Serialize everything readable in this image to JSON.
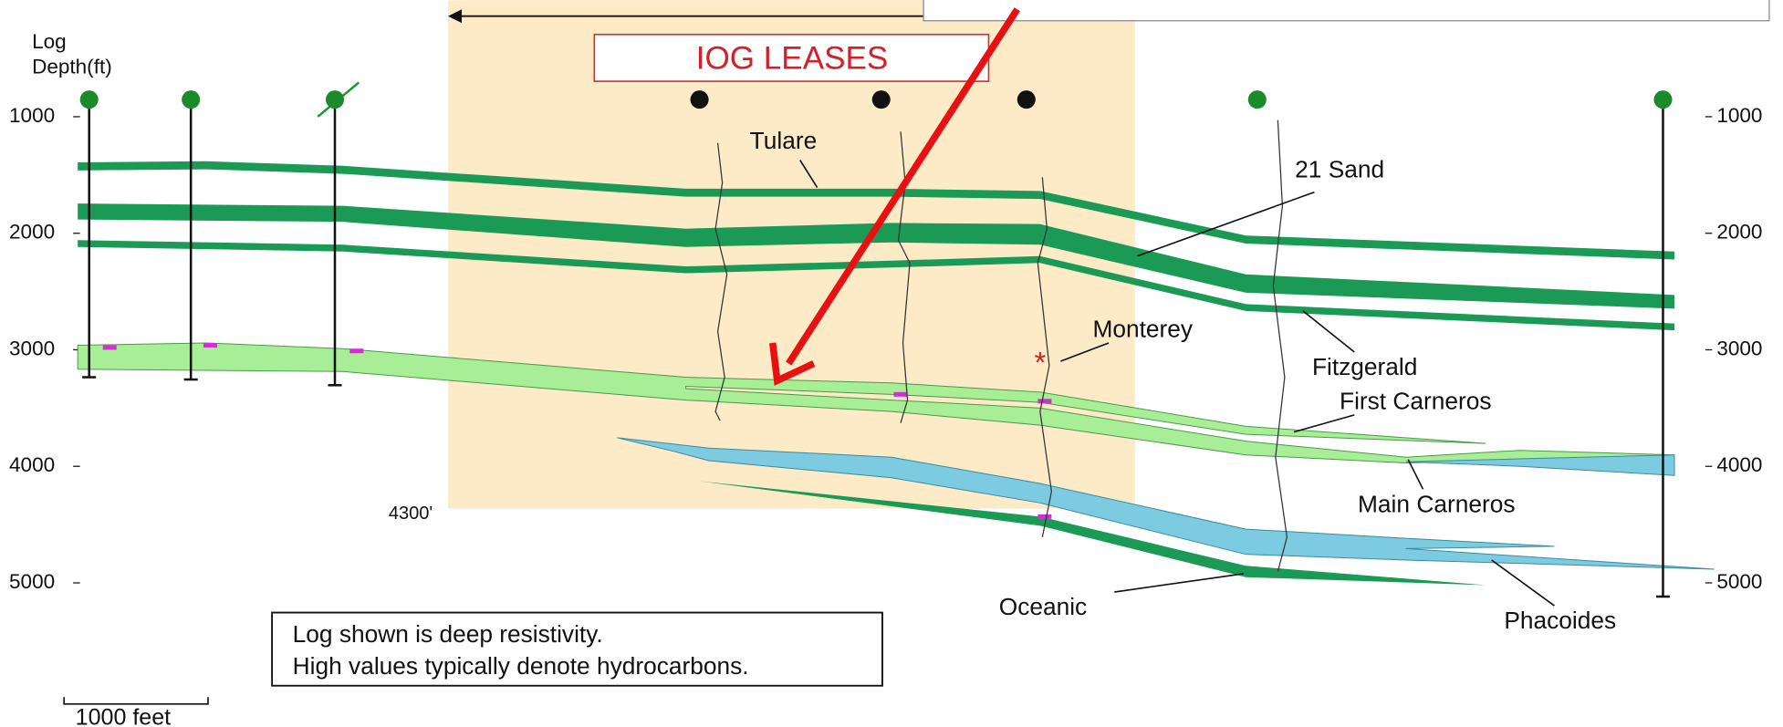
{
  "axis_title_line1": "Log",
  "axis_title_line2": "Depth(ft)",
  "depth_ticks": [
    1000,
    2000,
    3000,
    4000,
    5000
  ],
  "lease_label": "IOG LEASES",
  "formations": {
    "tulare": "Tulare",
    "sand21": "21 Sand",
    "monterey": "Monterey",
    "fitzgerald": "Fitzgerald",
    "first_carneros": "First Carneros",
    "main_carneros": "Main Carneros",
    "oceanic": "Oceanic",
    "phacoides": "Phacoides"
  },
  "depth_marker": "4300'",
  "note": {
    "line1": "Log shown is deep resistivity.",
    "line2": "High values typically denote hydrocarbons."
  },
  "scale_bar": "1000 feet"
}
